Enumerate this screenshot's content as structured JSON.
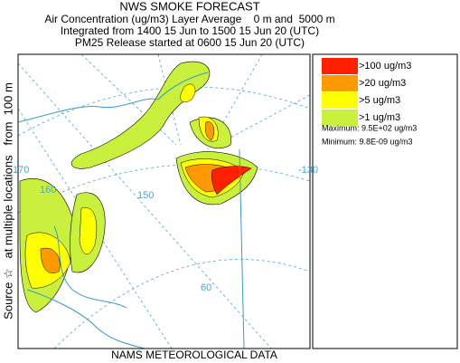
{
  "header": {
    "title": "NWS SMOKE FORECAST",
    "lines": [
      "Air Concentration (ug/m3) Layer Average    0 m and  5000 m",
      "Integrated from 1400 15 Jun to 1500 15 Jun 20 (UTC)",
      "PM25 Release started at 0600 15 Jun 20 (UTC)"
    ]
  },
  "side_label": "Source ☆   at multiple locations   from  100 m",
  "legend": {
    "items": [
      {
        "label": ">100 ug/m3",
        "color": "#ff2000"
      },
      {
        "label": ">20 ug/m3",
        "color": "#ff9900"
      },
      {
        "label": ">5 ug/m3",
        "color": "#ffff00"
      },
      {
        "label": ">1 ug/m3",
        "color": "#c8f03c"
      }
    ],
    "maximum": "Maximum: 9.5E+02 ug/m3",
    "minimum": "Minimum: 9.8E-09 ug/m3"
  },
  "map": {
    "labels": [
      "170",
      "160",
      "150",
      "-130",
      "60"
    ]
  },
  "footer": "NAMS METEOROLOGICAL DATA"
}
